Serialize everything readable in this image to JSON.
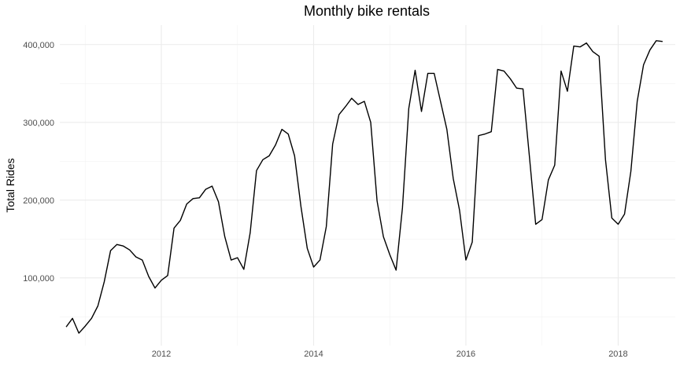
{
  "chart_data": {
    "type": "line",
    "title": "Monthly bike rentals",
    "xlabel": "",
    "ylabel": "Total Rides",
    "xlim": [
      "2010-09",
      "2018-10"
    ],
    "ylim": [
      13000,
      425000
    ],
    "x_ticks": [
      {
        "value": "2012-01",
        "label": "2012"
      },
      {
        "value": "2014-01",
        "label": "2014"
      },
      {
        "value": "2016-01",
        "label": "2016"
      },
      {
        "value": "2018-01",
        "label": "2018"
      }
    ],
    "y_ticks": [
      {
        "value": 100000,
        "label": "100,000"
      },
      {
        "value": 200000,
        "label": "200,000"
      },
      {
        "value": 300000,
        "label": "300,000"
      },
      {
        "value": 400000,
        "label": "400,000"
      }
    ],
    "grid": true,
    "line_color": "#000000",
    "series": [
      {
        "x": [
          "2010-10",
          "2010-11",
          "2010-12",
          "2011-01",
          "2011-02",
          "2011-03",
          "2011-04",
          "2011-05",
          "2011-06",
          "2011-07",
          "2011-08",
          "2011-09",
          "2011-10",
          "2011-11",
          "2011-12",
          "2012-01",
          "2012-02",
          "2012-03",
          "2012-04",
          "2012-05",
          "2012-06",
          "2012-07",
          "2012-08",
          "2012-09",
          "2012-10",
          "2012-11",
          "2012-12",
          "2013-01",
          "2013-02",
          "2013-03",
          "2013-04",
          "2013-05",
          "2013-06",
          "2013-07",
          "2013-08",
          "2013-09",
          "2013-10",
          "2013-11",
          "2013-12",
          "2014-01",
          "2014-02",
          "2014-03",
          "2014-04",
          "2014-05",
          "2014-06",
          "2014-07",
          "2014-08",
          "2014-09",
          "2014-10",
          "2014-11",
          "2014-12",
          "2015-01",
          "2015-02",
          "2015-03",
          "2015-04",
          "2015-05",
          "2015-06",
          "2015-07",
          "2015-08",
          "2015-09",
          "2015-10",
          "2015-11",
          "2015-12",
          "2016-01",
          "2016-02",
          "2016-03",
          "2016-04",
          "2016-05",
          "2016-06",
          "2016-07",
          "2016-08",
          "2016-09",
          "2016-10",
          "2016-11",
          "2016-12",
          "2017-01",
          "2017-02",
          "2017-03",
          "2017-04",
          "2017-05",
          "2017-06",
          "2017-07",
          "2017-08",
          "2017-09",
          "2017-10",
          "2017-11",
          "2017-12",
          "2018-01",
          "2018-02",
          "2018-03",
          "2018-04",
          "2018-05",
          "2018-06",
          "2018-07",
          "2018-08"
        ],
        "values": [
          37000,
          48000,
          29000,
          38000,
          48000,
          64000,
          95000,
          135000,
          143000,
          141000,
          136000,
          127000,
          123000,
          102000,
          87000,
          97000,
          103000,
          164000,
          174000,
          195000,
          202000,
          203000,
          214000,
          218000,
          198000,
          153000,
          123000,
          126000,
          111000,
          158000,
          238000,
          252000,
          257000,
          271000,
          291000,
          285000,
          257000,
          192000,
          138000,
          114000,
          123000,
          166000,
          272000,
          310000,
          320000,
          331000,
          323000,
          327000,
          300000,
          199000,
          153000,
          130000,
          110000,
          190000,
          318000,
          367000,
          314000,
          363000,
          363000,
          327000,
          291000,
          228000,
          187000,
          123000,
          146000,
          283000,
          285000,
          288000,
          368000,
          366000,
          356000,
          344000,
          343000,
          257000,
          169000,
          175000,
          226000,
          245000,
          366000,
          340000,
          398000,
          397000,
          402000,
          391000,
          385000,
          252000,
          177000,
          169000,
          182000,
          237000,
          327000,
          374000,
          393000,
          405000,
          404000
        ]
      }
    ]
  }
}
